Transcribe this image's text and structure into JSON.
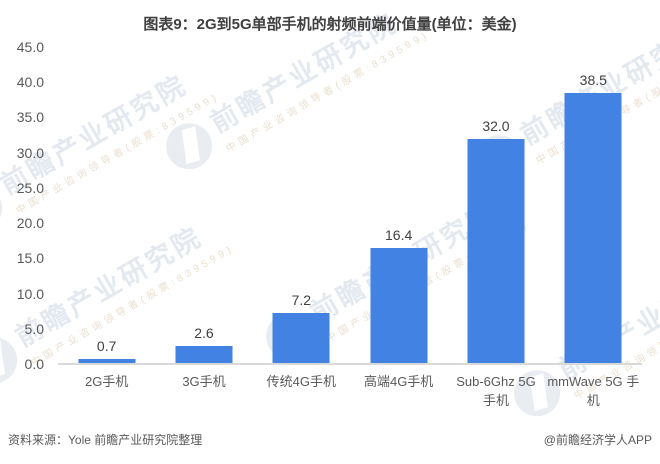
{
  "title": "图表9：2G到5G单部手机的射频前端价值量(单位：美金)",
  "chart_data": {
    "type": "bar",
    "categories": [
      "2G手机",
      "3G手机",
      "传统4G手机",
      "高端4G手机",
      "Sub-6Ghz 5G 手机",
      "mmWave 5G 手机"
    ],
    "values": [
      0.7,
      2.6,
      7.2,
      16.4,
      32.0,
      38.5
    ],
    "value_labels": [
      "0.7",
      "2.6",
      "7.2",
      "16.4",
      "32.0",
      "38.5"
    ],
    "title": "图表9：2G到5G单部手机的射频前端价值量(单位：美金)",
    "xlabel": "",
    "ylabel": "",
    "ylim": [
      0,
      45
    ],
    "ytick_step": 5,
    "ytick_labels": [
      "0.0",
      "5.0",
      "10.0",
      "15.0",
      "20.0",
      "25.0",
      "30.0",
      "35.0",
      "40.0",
      "45.0"
    ],
    "grid": false,
    "legend": false,
    "bar_color": "#4182e2",
    "axis_line_color": "#d9d9d9"
  },
  "footer": {
    "source": "资料来源：Yole 前瞻产业研究院整理",
    "credit": "@前瞻经济学人APP"
  },
  "watermark": {
    "big_text": "前瞻产业研究院",
    "small_text": "中国产业咨询领导者(股票:839599)"
  }
}
